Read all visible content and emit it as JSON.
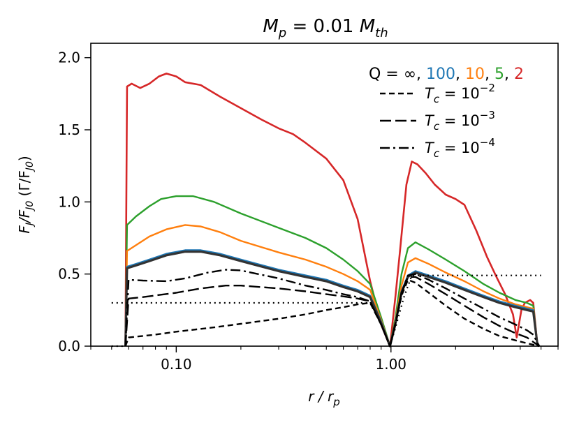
{
  "chart_data": {
    "type": "line",
    "title_main": "M",
    "title_main_sub": "p",
    "title_rest": " = 0.01 ",
    "title_main2": "M",
    "title_main2_sub": "th",
    "xlabel": "r / r",
    "xlabel_sub": "p",
    "ylabel_a": "F",
    "ylabel_a_sub": "J",
    "ylabel_b": "/F",
    "ylabel_b_sub": "J0",
    "ylabel_c": " (Γ/F",
    "ylabel_c_sub": "J0",
    "ylabel_d": ")",
    "xscale": "log",
    "xlim": [
      0.04,
      6.0
    ],
    "ylim": [
      0.0,
      2.1
    ],
    "x_ticks": [
      {
        "value": 0.1,
        "label": "0.10"
      },
      {
        "value": 1.0,
        "label": "1.00"
      }
    ],
    "y_ticks": [
      {
        "value": 0.0,
        "label": "0.0"
      },
      {
        "value": 0.5,
        "label": "0.5"
      },
      {
        "value": 1.0,
        "label": "1.0"
      },
      {
        "value": 1.5,
        "label": "1.5"
      },
      {
        "value": 2.0,
        "label": "2.0"
      }
    ],
    "q_legend": [
      {
        "text": "Q = ∞,",
        "color": "#000000"
      },
      {
        "text": "100",
        "color": "#1f77b4"
      },
      {
        "text": ",",
        "color": "#000000"
      },
      {
        "text": "10",
        "color": "#ff7f0e"
      },
      {
        "text": ",",
        "color": "#000000"
      },
      {
        "text": "5",
        "color": "#2ca02c"
      },
      {
        "text": ",",
        "color": "#000000"
      },
      {
        "text": "2",
        "color": "#d62728"
      }
    ],
    "legend": [
      {
        "label_base": "T",
        "label_sub": "c",
        "label_eq": " = 10",
        "label_sup": "−2",
        "dash": "dashed"
      },
      {
        "label_base": "T",
        "label_sub": "c",
        "label_eq": " = 10",
        "label_sup": "−3",
        "dash": "longdash"
      },
      {
        "label_base": "T",
        "label_sub": "c",
        "label_eq": " = 10",
        "label_sup": "−4",
        "dash": "dashdot"
      }
    ],
    "series": [
      {
        "key": "q2",
        "color": "#d62728",
        "width": 2.6,
        "dash": "solid",
        "points": [
          [
            0.058,
            0.0
          ],
          [
            0.059,
            1.8
          ],
          [
            0.062,
            1.82
          ],
          [
            0.068,
            1.79
          ],
          [
            0.075,
            1.82
          ],
          [
            0.083,
            1.87
          ],
          [
            0.09,
            1.89
          ],
          [
            0.1,
            1.87
          ],
          [
            0.11,
            1.83
          ],
          [
            0.13,
            1.81
          ],
          [
            0.16,
            1.73
          ],
          [
            0.2,
            1.65
          ],
          [
            0.25,
            1.57
          ],
          [
            0.3,
            1.51
          ],
          [
            0.35,
            1.47
          ],
          [
            0.4,
            1.41
          ],
          [
            0.5,
            1.3
          ],
          [
            0.6,
            1.15
          ],
          [
            0.7,
            0.88
          ],
          [
            0.8,
            0.45
          ],
          [
            0.9,
            0.15
          ],
          [
            0.99,
            0.0
          ],
          [
            1.05,
            0.35
          ],
          [
            1.1,
            0.65
          ],
          [
            1.18,
            1.12
          ],
          [
            1.25,
            1.28
          ],
          [
            1.33,
            1.26
          ],
          [
            1.45,
            1.2
          ],
          [
            1.6,
            1.12
          ],
          [
            1.8,
            1.05
          ],
          [
            2.0,
            1.02
          ],
          [
            2.2,
            0.98
          ],
          [
            2.5,
            0.8
          ],
          [
            2.8,
            0.62
          ],
          [
            3.1,
            0.48
          ],
          [
            3.4,
            0.36
          ],
          [
            3.7,
            0.22
          ],
          [
            3.85,
            0.06
          ],
          [
            4.05,
            0.25
          ],
          [
            4.2,
            0.3
          ],
          [
            4.45,
            0.32
          ],
          [
            4.6,
            0.3
          ],
          [
            4.8,
            0.02
          ],
          [
            4.9,
            0.0
          ]
        ]
      },
      {
        "key": "q5",
        "color": "#2ca02c",
        "width": 2.4,
        "dash": "solid",
        "points": [
          [
            0.058,
            0.0
          ],
          [
            0.059,
            0.84
          ],
          [
            0.065,
            0.9
          ],
          [
            0.075,
            0.97
          ],
          [
            0.085,
            1.02
          ],
          [
            0.1,
            1.04
          ],
          [
            0.12,
            1.04
          ],
          [
            0.15,
            1.0
          ],
          [
            0.2,
            0.92
          ],
          [
            0.3,
            0.82
          ],
          [
            0.4,
            0.75
          ],
          [
            0.5,
            0.68
          ],
          [
            0.6,
            0.6
          ],
          [
            0.7,
            0.52
          ],
          [
            0.8,
            0.43
          ],
          [
            0.9,
            0.2
          ],
          [
            0.99,
            0.0
          ],
          [
            1.05,
            0.2
          ],
          [
            1.12,
            0.5
          ],
          [
            1.2,
            0.68
          ],
          [
            1.3,
            0.72
          ],
          [
            1.5,
            0.67
          ],
          [
            1.8,
            0.6
          ],
          [
            2.2,
            0.52
          ],
          [
            2.7,
            0.43
          ],
          [
            3.2,
            0.37
          ],
          [
            3.8,
            0.32
          ],
          [
            4.3,
            0.3
          ],
          [
            4.6,
            0.28
          ],
          [
            4.8,
            0.02
          ],
          [
            4.9,
            0.0
          ]
        ]
      },
      {
        "key": "q10",
        "color": "#ff7f0e",
        "width": 2.4,
        "dash": "solid",
        "points": [
          [
            0.058,
            0.0
          ],
          [
            0.059,
            0.66
          ],
          [
            0.065,
            0.7
          ],
          [
            0.075,
            0.76
          ],
          [
            0.09,
            0.81
          ],
          [
            0.11,
            0.84
          ],
          [
            0.13,
            0.83
          ],
          [
            0.16,
            0.79
          ],
          [
            0.2,
            0.73
          ],
          [
            0.3,
            0.65
          ],
          [
            0.4,
            0.6
          ],
          [
            0.5,
            0.55
          ],
          [
            0.6,
            0.5
          ],
          [
            0.7,
            0.45
          ],
          [
            0.8,
            0.39
          ],
          [
            0.9,
            0.18
          ],
          [
            0.99,
            0.0
          ],
          [
            1.05,
            0.18
          ],
          [
            1.12,
            0.42
          ],
          [
            1.2,
            0.58
          ],
          [
            1.3,
            0.61
          ],
          [
            1.5,
            0.57
          ],
          [
            1.8,
            0.51
          ],
          [
            2.2,
            0.45
          ],
          [
            2.7,
            0.38
          ],
          [
            3.2,
            0.33
          ],
          [
            3.8,
            0.29
          ],
          [
            4.3,
            0.27
          ],
          [
            4.6,
            0.26
          ],
          [
            4.8,
            0.02
          ],
          [
            4.9,
            0.0
          ]
        ]
      },
      {
        "key": "q100",
        "color": "#1f77b4",
        "width": 2.6,
        "dash": "solid",
        "points": [
          [
            0.058,
            0.0
          ],
          [
            0.059,
            0.55
          ],
          [
            0.065,
            0.57
          ],
          [
            0.075,
            0.6
          ],
          [
            0.09,
            0.64
          ],
          [
            0.11,
            0.665
          ],
          [
            0.13,
            0.665
          ],
          [
            0.16,
            0.64
          ],
          [
            0.2,
            0.6
          ],
          [
            0.3,
            0.53
          ],
          [
            0.4,
            0.49
          ],
          [
            0.5,
            0.46
          ],
          [
            0.6,
            0.42
          ],
          [
            0.7,
            0.39
          ],
          [
            0.8,
            0.35
          ],
          [
            0.9,
            0.17
          ],
          [
            0.99,
            0.0
          ],
          [
            1.05,
            0.17
          ],
          [
            1.12,
            0.38
          ],
          [
            1.2,
            0.49
          ],
          [
            1.3,
            0.52
          ],
          [
            1.5,
            0.49
          ],
          [
            1.8,
            0.45
          ],
          [
            2.2,
            0.4
          ],
          [
            2.7,
            0.35
          ],
          [
            3.2,
            0.31
          ],
          [
            3.8,
            0.28
          ],
          [
            4.3,
            0.26
          ],
          [
            4.6,
            0.25
          ],
          [
            4.8,
            0.02
          ],
          [
            4.9,
            0.0
          ]
        ]
      },
      {
        "key": "qinf",
        "color": "#333333",
        "width": 3.2,
        "dash": "solid",
        "points": [
          [
            0.058,
            0.0
          ],
          [
            0.059,
            0.54
          ],
          [
            0.065,
            0.56
          ],
          [
            0.075,
            0.59
          ],
          [
            0.09,
            0.63
          ],
          [
            0.11,
            0.655
          ],
          [
            0.13,
            0.655
          ],
          [
            0.16,
            0.63
          ],
          [
            0.2,
            0.59
          ],
          [
            0.3,
            0.52
          ],
          [
            0.4,
            0.48
          ],
          [
            0.5,
            0.45
          ],
          [
            0.6,
            0.41
          ],
          [
            0.7,
            0.38
          ],
          [
            0.8,
            0.34
          ],
          [
            0.9,
            0.16
          ],
          [
            0.99,
            0.0
          ],
          [
            1.05,
            0.16
          ],
          [
            1.12,
            0.37
          ],
          [
            1.2,
            0.48
          ],
          [
            1.3,
            0.51
          ],
          [
            1.5,
            0.48
          ],
          [
            1.8,
            0.44
          ],
          [
            2.2,
            0.39
          ],
          [
            2.7,
            0.34
          ],
          [
            3.2,
            0.3
          ],
          [
            3.8,
            0.27
          ],
          [
            4.3,
            0.25
          ],
          [
            4.6,
            0.24
          ],
          [
            4.8,
            0.02
          ],
          [
            4.9,
            0.0
          ]
        ]
      },
      {
        "key": "tc2",
        "color": "#000000",
        "width": 2.4,
        "dash": "dashed",
        "points": [
          [
            0.058,
            0.0
          ],
          [
            0.06,
            0.06
          ],
          [
            0.08,
            0.08
          ],
          [
            0.1,
            0.1
          ],
          [
            0.15,
            0.13
          ],
          [
            0.2,
            0.155
          ],
          [
            0.3,
            0.19
          ],
          [
            0.4,
            0.22
          ],
          [
            0.5,
            0.25
          ],
          [
            0.6,
            0.27
          ],
          [
            0.7,
            0.29
          ],
          [
            0.8,
            0.3
          ],
          [
            0.9,
            0.15
          ],
          [
            0.99,
            0.0
          ],
          [
            1.05,
            0.15
          ],
          [
            1.12,
            0.35
          ],
          [
            1.2,
            0.46
          ],
          [
            1.3,
            0.44
          ],
          [
            1.5,
            0.37
          ],
          [
            1.8,
            0.28
          ],
          [
            2.2,
            0.19
          ],
          [
            2.7,
            0.12
          ],
          [
            3.2,
            0.07
          ],
          [
            3.8,
            0.04
          ],
          [
            4.3,
            0.02
          ],
          [
            4.9,
            0.0
          ]
        ]
      },
      {
        "key": "tc3",
        "color": "#000000",
        "width": 2.4,
        "dash": "longdash",
        "points": [
          [
            0.058,
            0.0
          ],
          [
            0.06,
            0.33
          ],
          [
            0.07,
            0.34
          ],
          [
            0.1,
            0.37
          ],
          [
            0.13,
            0.4
          ],
          [
            0.17,
            0.42
          ],
          [
            0.2,
            0.42
          ],
          [
            0.3,
            0.4
          ],
          [
            0.4,
            0.38
          ],
          [
            0.5,
            0.36
          ],
          [
            0.6,
            0.345
          ],
          [
            0.7,
            0.33
          ],
          [
            0.8,
            0.31
          ],
          [
            0.9,
            0.15
          ],
          [
            0.99,
            0.0
          ],
          [
            1.05,
            0.16
          ],
          [
            1.12,
            0.37
          ],
          [
            1.2,
            0.48
          ],
          [
            1.3,
            0.48
          ],
          [
            1.5,
            0.43
          ],
          [
            1.8,
            0.36
          ],
          [
            2.2,
            0.28
          ],
          [
            2.7,
            0.2
          ],
          [
            3.2,
            0.14
          ],
          [
            3.8,
            0.09
          ],
          [
            4.3,
            0.06
          ],
          [
            4.9,
            0.0
          ]
        ]
      },
      {
        "key": "tc4",
        "color": "#000000",
        "width": 2.4,
        "dash": "dashdot",
        "points": [
          [
            0.058,
            0.0
          ],
          [
            0.06,
            0.46
          ],
          [
            0.07,
            0.455
          ],
          [
            0.09,
            0.45
          ],
          [
            0.11,
            0.47
          ],
          [
            0.14,
            0.51
          ],
          [
            0.17,
            0.53
          ],
          [
            0.2,
            0.525
          ],
          [
            0.3,
            0.47
          ],
          [
            0.4,
            0.42
          ],
          [
            0.5,
            0.39
          ],
          [
            0.6,
            0.36
          ],
          [
            0.7,
            0.34
          ],
          [
            0.8,
            0.31
          ],
          [
            0.9,
            0.15
          ],
          [
            0.99,
            0.0
          ],
          [
            1.05,
            0.16
          ],
          [
            1.12,
            0.37
          ],
          [
            1.2,
            0.49
          ],
          [
            1.3,
            0.5
          ],
          [
            1.5,
            0.46
          ],
          [
            1.8,
            0.4
          ],
          [
            2.2,
            0.33
          ],
          [
            2.7,
            0.26
          ],
          [
            3.2,
            0.2
          ],
          [
            3.8,
            0.15
          ],
          [
            4.3,
            0.11
          ],
          [
            4.6,
            0.08
          ],
          [
            4.9,
            0.0
          ]
        ]
      },
      {
        "key": "ref_inner",
        "color": "#000000",
        "width": 2.2,
        "dash": "dotted",
        "points": [
          [
            0.05,
            0.0
          ],
          [
            0.058,
            0.0
          ]
        ]
      },
      {
        "key": "ref_left",
        "color": "#000000",
        "width": 2.2,
        "dash": "dotted",
        "points": [
          [
            0.05,
            0.3
          ],
          [
            0.1,
            0.3
          ],
          [
            0.3,
            0.3
          ],
          [
            0.6,
            0.3
          ],
          [
            0.8,
            0.3
          ],
          [
            0.9,
            0.15
          ],
          [
            0.99,
            0.0
          ],
          [
            1.05,
            0.13
          ],
          [
            1.15,
            0.34
          ],
          [
            1.25,
            0.49
          ],
          [
            2.0,
            0.49
          ],
          [
            3.0,
            0.49
          ],
          [
            5.0,
            0.49
          ]
        ]
      }
    ]
  }
}
